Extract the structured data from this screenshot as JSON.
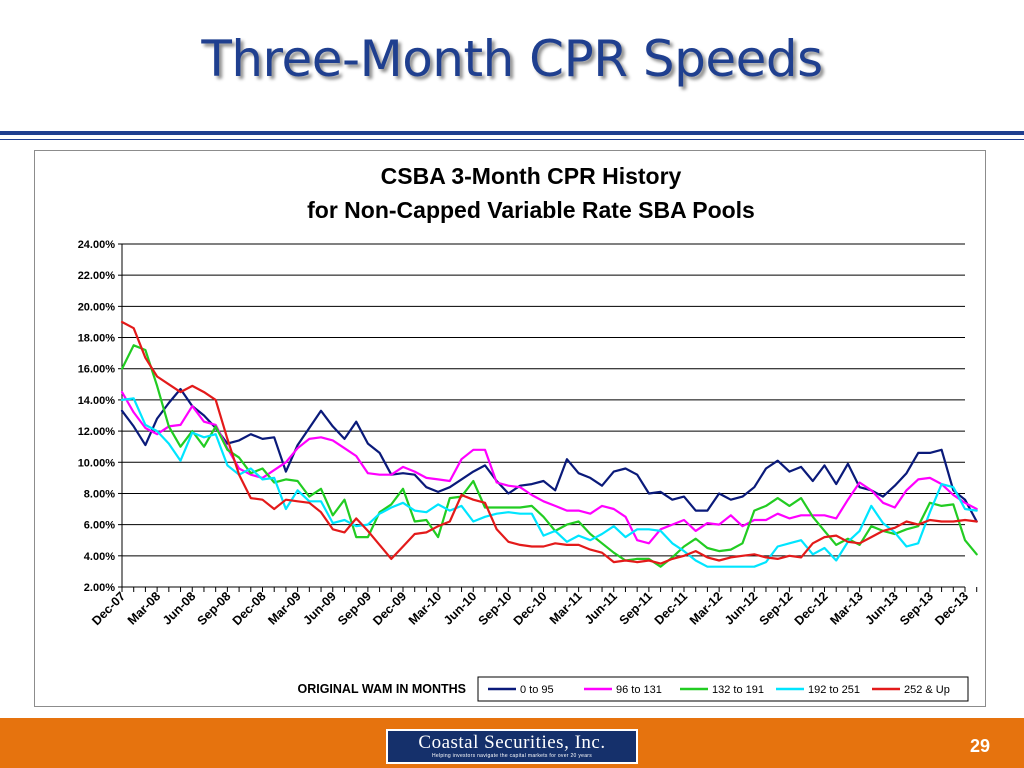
{
  "slide": {
    "title": "Three-Month CPR Speeds",
    "page_number": "29",
    "logo_main": "Coastal Securities, Inc.",
    "logo_tagline": "Helping investors navigate the capital markets for over 20 years"
  },
  "colors": {
    "title": "#1f3f8f",
    "footer": "#e6730e",
    "logo_bg": "#15306b"
  },
  "chart_data": {
    "type": "line",
    "title": "CSBA 3-Month CPR History",
    "subtitle": "for Non-Capped Variable Rate SBA Pools",
    "xlabel": "",
    "ylabel": "",
    "ylim": [
      2,
      24
    ],
    "y_ticks": [
      "2.00%",
      "4.00%",
      "6.00%",
      "8.00%",
      "10.00%",
      "12.00%",
      "14.00%",
      "16.00%",
      "18.00%",
      "20.00%",
      "22.00%",
      "24.00%"
    ],
    "x_ticks": [
      "Dec-07",
      "Mar-08",
      "Jun-08",
      "Sep-08",
      "Dec-08",
      "Mar-09",
      "Jun-09",
      "Sep-09",
      "Dec-09",
      "Mar-10",
      "Jun-10",
      "Sep-10",
      "Dec-10",
      "Mar-11",
      "Jun-11",
      "Sep-11",
      "Dec-11",
      "Mar-12",
      "Jun-12",
      "Sep-12",
      "Dec-12",
      "Mar-13",
      "Jun-13",
      "Sep-13",
      "Dec-13"
    ],
    "x_start": "Dec-07",
    "x_end": "Dec-13",
    "grid": true,
    "legend_title": "ORIGINAL WAM IN MONTHS",
    "legend_position": "bottom",
    "series": [
      {
        "name": "0 to 95",
        "color": "#0a1a7a",
        "values": [
          13.3,
          12.3,
          11.1,
          12.8,
          13.8,
          14.7,
          13.6,
          13.0,
          12.2,
          11.2,
          11.4,
          11.8,
          11.5,
          11.6,
          9.4,
          11.1,
          12.2,
          13.3,
          12.3,
          11.5,
          12.6,
          11.2,
          10.6,
          9.2,
          9.3,
          9.2,
          8.4,
          8.1,
          8.4,
          8.9,
          9.4,
          9.8,
          8.8,
          8.0,
          8.5,
          8.6,
          8.8,
          8.2,
          10.2,
          9.3,
          9.0,
          8.5,
          9.4,
          9.6,
          9.2,
          8.0,
          8.1,
          7.6,
          7.8,
          6.9,
          6.9,
          8.0,
          7.6,
          7.8,
          8.4,
          9.6,
          10.1,
          9.4,
          9.7,
          8.8,
          9.8,
          8.6,
          9.9,
          8.4,
          8.2,
          7.8,
          8.5,
          9.3,
          10.6,
          10.6,
          10.8,
          8.2,
          7.6,
          6.2
        ]
      },
      {
        "name": "96 to 131",
        "color": "#ff00ff",
        "values": [
          14.5,
          13.2,
          12.2,
          11.8,
          12.3,
          12.4,
          13.6,
          12.6,
          12.4,
          10.9,
          9.6,
          9.2,
          9.0,
          9.5,
          10.0,
          10.9,
          11.5,
          11.6,
          11.4,
          10.9,
          10.4,
          9.3,
          9.2,
          9.2,
          9.7,
          9.4,
          9.0,
          8.9,
          8.8,
          10.2,
          10.8,
          10.8,
          8.7,
          8.5,
          8.4,
          7.9,
          7.5,
          7.2,
          6.9,
          6.9,
          6.7,
          7.2,
          7.0,
          6.5,
          5.0,
          4.8,
          5.7,
          6.0,
          6.3,
          5.6,
          6.1,
          6.0,
          6.6,
          5.9,
          6.3,
          6.3,
          6.7,
          6.4,
          6.6,
          6.6,
          6.6,
          6.4,
          7.6,
          8.7,
          8.2,
          7.4,
          7.1,
          8.2,
          8.9,
          9.0,
          8.6,
          7.9,
          7.4,
          7.0
        ]
      },
      {
        "name": "132 to 191",
        "color": "#22cc22",
        "values": [
          16.0,
          17.5,
          17.2,
          14.9,
          12.3,
          11.0,
          12.0,
          11.0,
          12.3,
          10.8,
          10.3,
          9.3,
          9.6,
          8.7,
          8.9,
          8.8,
          7.8,
          8.3,
          6.6,
          7.6,
          5.2,
          5.2,
          6.8,
          7.3,
          8.3,
          6.2,
          6.3,
          5.2,
          7.7,
          7.8,
          8.8,
          7.1,
          7.1,
          7.1,
          7.1,
          7.2,
          6.5,
          5.6,
          6.0,
          6.2,
          5.4,
          4.8,
          4.2,
          3.7,
          3.8,
          3.8,
          3.3,
          3.9,
          4.6,
          5.1,
          4.5,
          4.3,
          4.4,
          4.8,
          6.9,
          7.2,
          7.7,
          7.2,
          7.7,
          6.5,
          5.6,
          4.7,
          5.1,
          4.7,
          5.9,
          5.6,
          5.4,
          5.7,
          5.9,
          7.4,
          7.2,
          7.3,
          5.0,
          4.1
        ]
      },
      {
        "name": "192 to 251",
        "color": "#00e5ff",
        "values": [
          14.0,
          14.1,
          12.4,
          12.0,
          11.2,
          10.1,
          11.9,
          11.6,
          11.8,
          9.8,
          9.2,
          9.6,
          8.9,
          9.0,
          7.0,
          8.2,
          7.5,
          7.5,
          6.1,
          6.3,
          5.9,
          6.0,
          6.7,
          7.1,
          7.4,
          6.9,
          6.8,
          7.3,
          6.9,
          7.2,
          6.2,
          6.5,
          6.7,
          6.8,
          6.7,
          6.7,
          5.3,
          5.6,
          4.9,
          5.3,
          5.0,
          5.4,
          5.9,
          5.2,
          5.7,
          5.7,
          5.6,
          4.8,
          4.3,
          3.7,
          3.3,
          3.3,
          3.3,
          3.3,
          3.3,
          3.6,
          4.6,
          4.8,
          5.0,
          4.1,
          4.5,
          3.7,
          4.9,
          5.6,
          7.2,
          6.1,
          5.5,
          4.6,
          4.8,
          6.8,
          8.6,
          8.4,
          7.0,
          6.9
        ]
      },
      {
        "name": "252 & Up",
        "color": "#e31a1a",
        "values": [
          19.0,
          18.6,
          16.7,
          15.5,
          15.0,
          14.5,
          14.9,
          14.5,
          14.0,
          11.5,
          9.2,
          7.7,
          7.6,
          7.0,
          7.6,
          7.5,
          7.4,
          6.8,
          5.7,
          5.5,
          6.4,
          5.6,
          4.7,
          3.8,
          4.6,
          5.4,
          5.5,
          5.9,
          6.2,
          7.9,
          7.6,
          7.4,
          5.7,
          4.9,
          4.7,
          4.6,
          4.6,
          4.8,
          4.7,
          4.7,
          4.4,
          4.2,
          3.6,
          3.7,
          3.6,
          3.7,
          3.5,
          3.8,
          4.0,
          4.3,
          3.9,
          3.7,
          3.9,
          4.0,
          4.1,
          3.9,
          3.8,
          4.0,
          3.9,
          4.8,
          5.2,
          5.3,
          4.9,
          4.8,
          5.2,
          5.6,
          5.8,
          6.2,
          6.0,
          6.3,
          6.2,
          6.2,
          6.3,
          6.2
        ]
      }
    ]
  }
}
